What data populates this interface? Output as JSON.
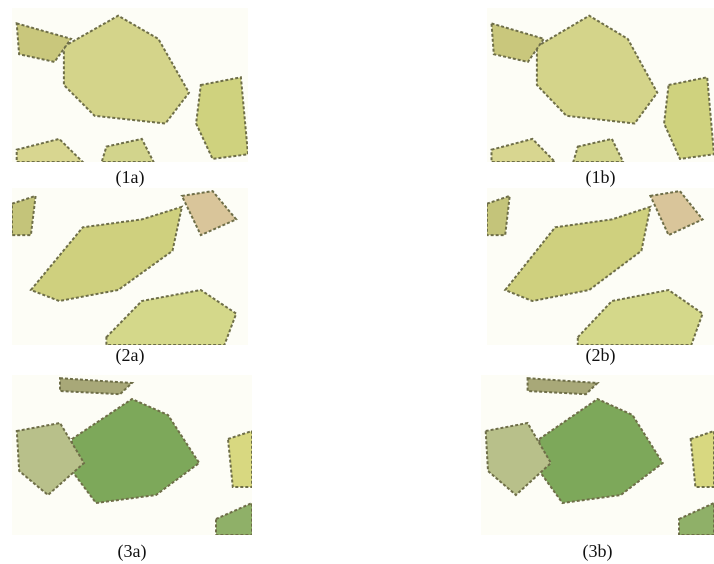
{
  "figure": {
    "panels": [
      {
        "label": "(1a)"
      },
      {
        "label": "(1b)"
      },
      {
        "label": "(2a)"
      },
      {
        "label": "(2b)"
      },
      {
        "label": "(3a)"
      },
      {
        "label": "(3b)"
      }
    ]
  }
}
